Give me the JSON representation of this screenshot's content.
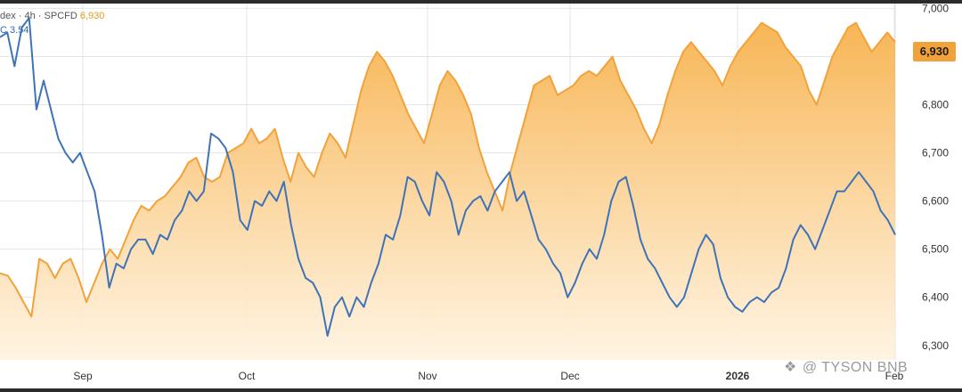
{
  "legend": {
    "line1_prefix": "dex · 4h · SPCFD",
    "line1_value": "6,930",
    "line2_prefix": "C",
    "line2_value": "3.54"
  },
  "price_tag": "6,930",
  "watermark": {
    "icon": "binance-logo-icon",
    "text": "@ TYSON BNB"
  },
  "colors": {
    "orange_line": "#f2a23a",
    "orange_fill_top": "#f7b24d",
    "orange_fill_bottom": "#fff3e0",
    "blue_line": "#3f73b8",
    "grid": "#e4e4e4"
  },
  "chart_data": {
    "type": "area",
    "title": "",
    "xlabel": "",
    "ylabel": "",
    "y_ticks": [
      "7,000",
      "6,900",
      "6,800",
      "6,700",
      "6,600",
      "6,500",
      "6,400",
      "6,300"
    ],
    "x_ticks": [
      "Sep",
      "Oct",
      "Nov",
      "Dec",
      "2026",
      "Feb"
    ],
    "ylim": [
      6270,
      7010
    ],
    "grid": true,
    "legend_position": "top-left",
    "series": [
      {
        "values": [
          6450,
          6445,
          6420,
          6390,
          6360,
          6480,
          6470,
          6440,
          6470,
          6480,
          6440,
          6390,
          6430,
          6470,
          6500,
          6480,
          6520,
          6560,
          6590,
          6580,
          6600,
          6610,
          6630,
          6650,
          6680,
          6690,
          6650,
          6640,
          6650,
          6700,
          6710,
          6720,
          6750,
          6720,
          6730,
          6750,
          6690,
          6640,
          6700,
          6670,
          6650,
          6700,
          6740,
          6720,
          6690,
          6760,
          6830,
          6880,
          6910,
          6890,
          6860,
          6820,
          6780,
          6750,
          6720,
          6780,
          6840,
          6870,
          6850,
          6820,
          6780,
          6710,
          6660,
          6620,
          6580,
          6660,
          6720,
          6780,
          6840,
          6850,
          6860,
          6820,
          6830,
          6840,
          6860,
          6870,
          6860,
          6880,
          6900,
          6850,
          6820,
          6790,
          6750,
          6720,
          6760,
          6820,
          6870,
          6910,
          6930,
          6910,
          6890,
          6870,
          6840,
          6880,
          6910,
          6930,
          6950,
          6970,
          6960,
          6950,
          6920,
          6900,
          6880,
          6830,
          6800,
          6850,
          6900,
          6930,
          6960,
          6970,
          6940,
          6910,
          6930,
          6950,
          6930
        ]
      },
      {
        "values": [
          6940,
          6950,
          6880,
          6960,
          6980,
          6790,
          6850,
          6790,
          6730,
          6700,
          6680,
          6700,
          6660,
          6620,
          6530,
          6420,
          6470,
          6460,
          6500,
          6520,
          6520,
          6490,
          6530,
          6520,
          6560,
          6580,
          6620,
          6600,
          6620,
          6740,
          6730,
          6710,
          6660,
          6560,
          6540,
          6600,
          6590,
          6620,
          6600,
          6640,
          6550,
          6480,
          6440,
          6430,
          6400,
          6320,
          6380,
          6400,
          6360,
          6400,
          6380,
          6430,
          6470,
          6530,
          6520,
          6570,
          6650,
          6640,
          6600,
          6570,
          6660,
          6640,
          6600,
          6530,
          6580,
          6600,
          6610,
          6580,
          6620,
          6640,
          6660,
          6600,
          6620,
          6570,
          6520,
          6500,
          6470,
          6450,
          6400,
          6430,
          6470,
          6500,
          6480,
          6530,
          6600,
          6640,
          6650,
          6590,
          6520,
          6480,
          6460,
          6430,
          6400,
          6380,
          6400,
          6450,
          6500,
          6530,
          6510,
          6440,
          6400,
          6380,
          6370,
          6390,
          6400,
          6390,
          6410,
          6420,
          6460,
          6520,
          6550,
          6530,
          6500,
          6540,
          6580,
          6620,
          6620,
          6640,
          6660,
          6640,
          6620,
          6580,
          6560,
          6530
        ]
      }
    ]
  }
}
